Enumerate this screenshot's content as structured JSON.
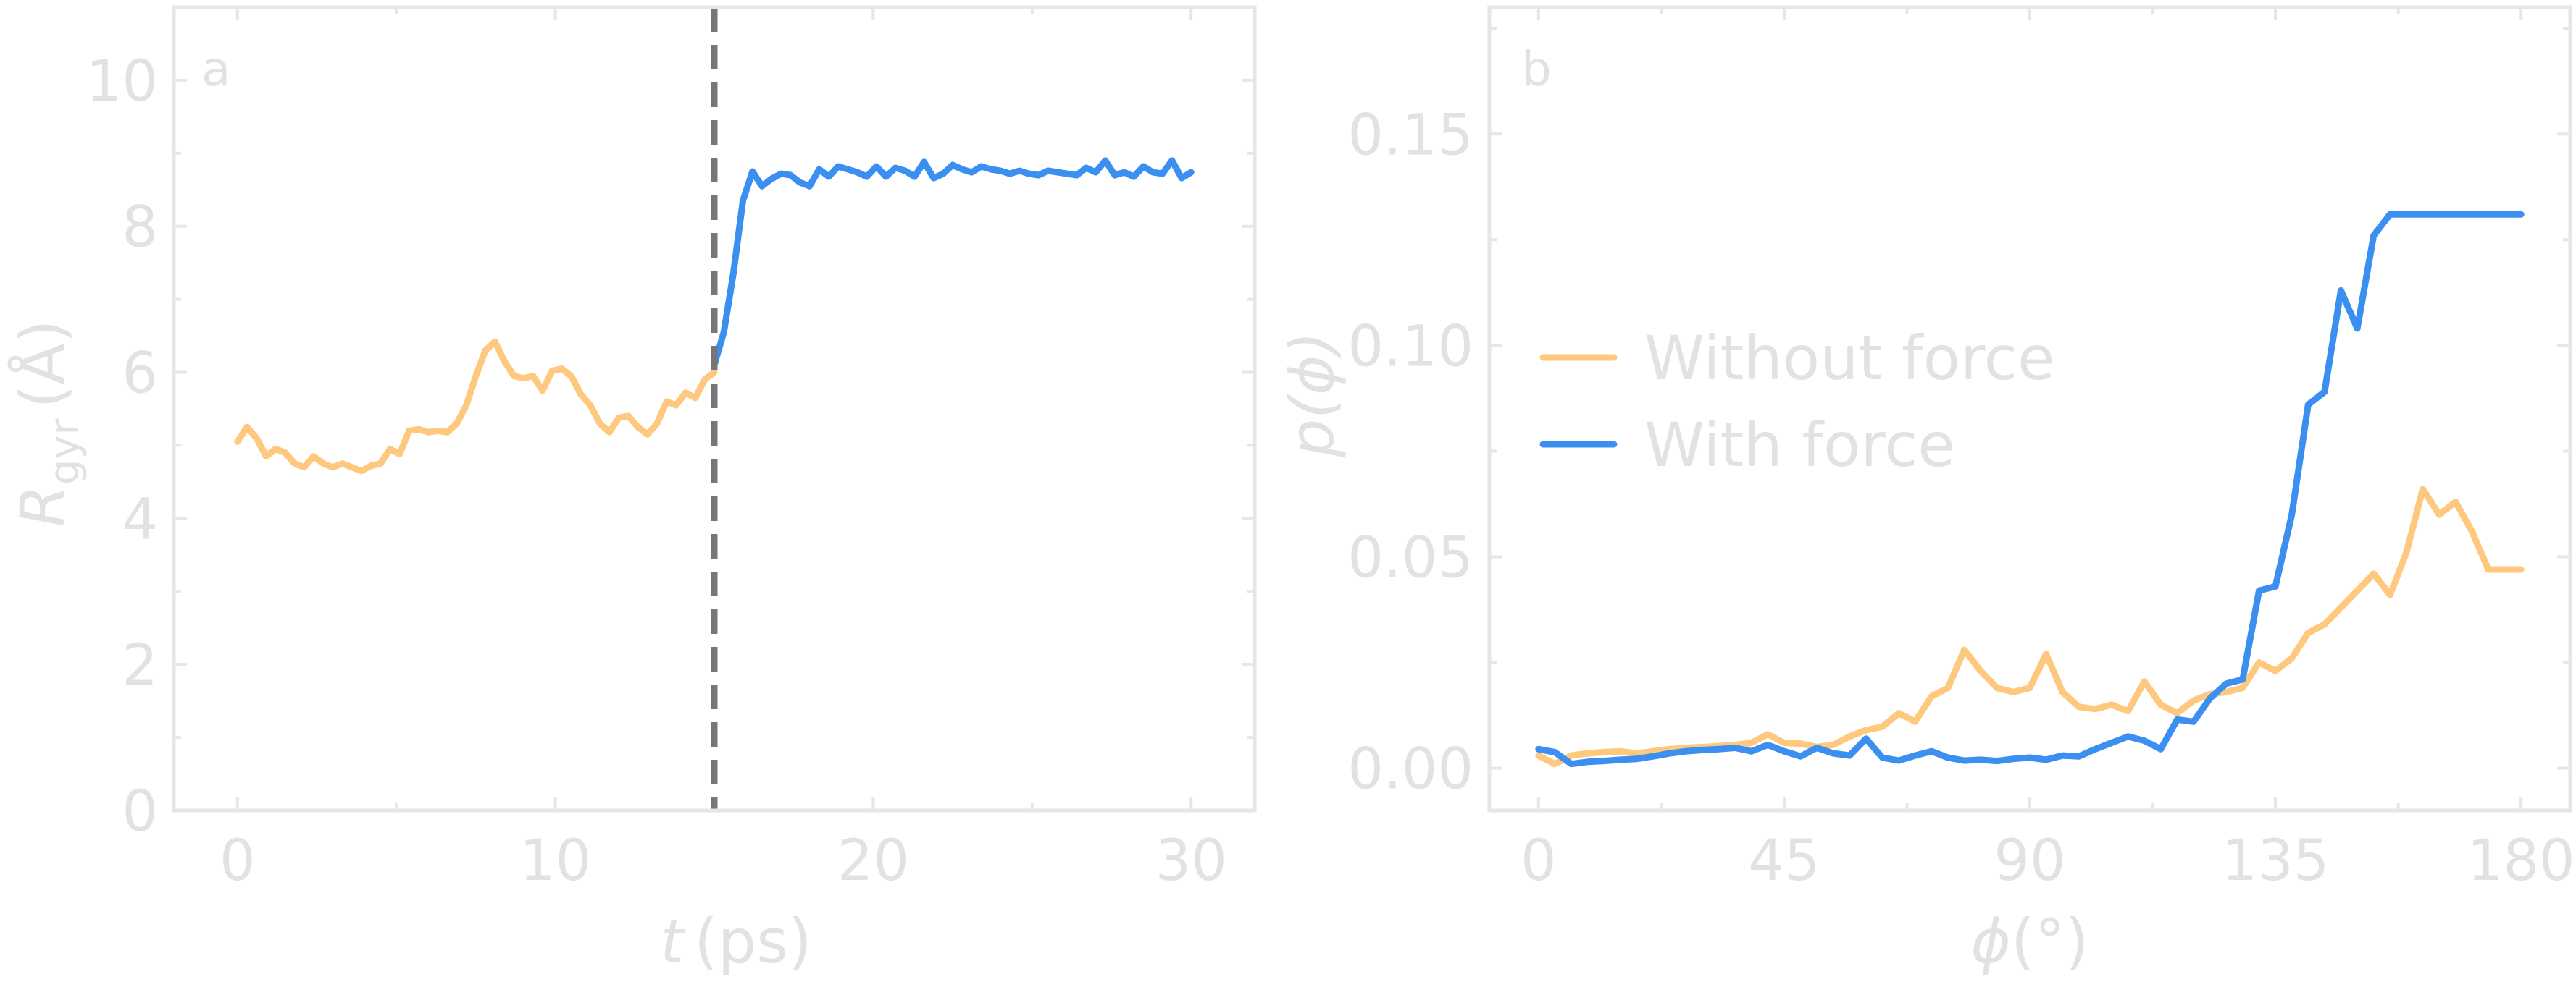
{
  "colors": {
    "without_force": "#fec97e",
    "with_force": "#3b8ff0",
    "marker_line": "#777777",
    "axes": "#e6e6e6",
    "text": "#e2e2e2"
  },
  "chart_data": [
    {
      "type": "line",
      "panel_label": "a",
      "xlabel_var": "t",
      "xlabel_unit": "(ps)",
      "ylabel_var": "R",
      "ylabel_sub": "gyr",
      "ylabel_unit": "(Å)",
      "xlim": [
        -2,
        32
      ],
      "ylim": [
        0,
        11
      ],
      "xticks": [
        0,
        10,
        20,
        30
      ],
      "yticks": [
        0,
        2,
        4,
        6,
        8,
        10
      ],
      "vline_x": 15,
      "series": [
        {
          "key": "without_force",
          "x": [
            0,
            0.3,
            0.6,
            0.9,
            1.2,
            1.5,
            1.8,
            2.1,
            2.4,
            2.7,
            3.0,
            3.3,
            3.6,
            3.9,
            4.2,
            4.5,
            4.8,
            5.1,
            5.4,
            5.7,
            6.0,
            6.3,
            6.6,
            6.9,
            7.2,
            7.5,
            7.8,
            8.1,
            8.4,
            8.7,
            9.0,
            9.3,
            9.6,
            9.9,
            10.2,
            10.5,
            10.8,
            11.1,
            11.4,
            11.7,
            12.0,
            12.3,
            12.6,
            12.9,
            13.2,
            13.5,
            13.8,
            14.1,
            14.4,
            14.7,
            15.0
          ],
          "y": [
            5.05,
            5.25,
            5.1,
            4.85,
            4.95,
            4.9,
            4.75,
            4.7,
            4.85,
            4.75,
            4.7,
            4.75,
            4.7,
            4.65,
            4.72,
            4.75,
            4.95,
            4.88,
            5.2,
            5.22,
            5.18,
            5.2,
            5.18,
            5.3,
            5.55,
            5.95,
            6.3,
            6.42,
            6.15,
            5.95,
            5.92,
            5.95,
            5.75,
            6.02,
            6.05,
            5.95,
            5.7,
            5.55,
            5.3,
            5.18,
            5.38,
            5.4,
            5.25,
            5.15,
            5.3,
            5.6,
            5.55,
            5.72,
            5.65,
            5.9,
            6.0
          ]
        },
        {
          "key": "with_force",
          "x": [
            15.0,
            15.3,
            15.6,
            15.9,
            16.2,
            16.5,
            16.8,
            17.1,
            17.4,
            17.7,
            18.0,
            18.3,
            18.6,
            18.9,
            19.2,
            19.5,
            19.8,
            20.1,
            20.4,
            20.7,
            21.0,
            21.3,
            21.6,
            21.9,
            22.2,
            22.5,
            22.8,
            23.1,
            23.4,
            23.7,
            24.0,
            24.3,
            24.6,
            24.9,
            25.2,
            25.5,
            25.8,
            26.1,
            26.4,
            26.7,
            27.0,
            27.3,
            27.6,
            27.9,
            28.2,
            28.5,
            28.8,
            29.1,
            29.4,
            29.7,
            30.0
          ],
          "y": [
            6.1,
            6.55,
            7.35,
            8.35,
            8.75,
            8.55,
            8.65,
            8.72,
            8.7,
            8.6,
            8.55,
            8.78,
            8.68,
            8.82,
            8.78,
            8.74,
            8.68,
            8.82,
            8.68,
            8.8,
            8.76,
            8.68,
            8.88,
            8.66,
            8.72,
            8.84,
            8.78,
            8.74,
            8.82,
            8.78,
            8.76,
            8.72,
            8.76,
            8.72,
            8.7,
            8.76,
            8.74,
            8.72,
            8.7,
            8.8,
            8.74,
            8.9,
            8.7,
            8.74,
            8.68,
            8.82,
            8.74,
            8.72,
            8.9,
            8.66,
            8.74
          ]
        }
      ]
    },
    {
      "type": "line",
      "panel_label": "b",
      "xlabel_var": "ϕ",
      "xlabel_unit": "(°)",
      "ylabel_text": "p(ϕ)",
      "xlim": [
        -9,
        189
      ],
      "ylim": [
        -0.01,
        0.18
      ],
      "xticks": [
        0,
        45,
        90,
        135,
        180
      ],
      "yticks": [
        0.0,
        0.05,
        0.1,
        0.15
      ],
      "ytick_labels": [
        "0.00",
        "0.05",
        "0.10",
        "0.15"
      ],
      "legend_position": "center-left",
      "series": [
        {
          "key": "without_force",
          "name": "Without force",
          "x": [
            0,
            3,
            6,
            9,
            12,
            15,
            18,
            21,
            24,
            27,
            30,
            33,
            36,
            39,
            42,
            45,
            48,
            51,
            54,
            57,
            60,
            63,
            66,
            69,
            72,
            75,
            78,
            81,
            84,
            87,
            90,
            93,
            96,
            99,
            102,
            105,
            108,
            111,
            114,
            117,
            120,
            123,
            126,
            129,
            132,
            135,
            138,
            141,
            144,
            147,
            150,
            153,
            156,
            159,
            162,
            165,
            168,
            171,
            174,
            177,
            180
          ],
          "y": [
            0.003,
            0.001,
            0.003,
            0.0035,
            0.0038,
            0.004,
            0.0035,
            0.004,
            0.0045,
            0.0048,
            0.005,
            0.0052,
            0.0055,
            0.006,
            0.008,
            0.006,
            0.0058,
            0.005,
            0.0055,
            0.0075,
            0.009,
            0.0098,
            0.013,
            0.011,
            0.017,
            0.019,
            0.028,
            0.023,
            0.019,
            0.018,
            0.019,
            0.027,
            0.018,
            0.0145,
            0.014,
            0.015,
            0.0135,
            0.0205,
            0.015,
            0.013,
            0.016,
            0.0175,
            0.018,
            0.019,
            0.025,
            0.023,
            0.026,
            0.032,
            0.034,
            0.038,
            0.042,
            0.046,
            0.041,
            0.051,
            0.066,
            0.06,
            0.063,
            0.056,
            0.047,
            0.047,
            0.047
          ]
        },
        {
          "key": "with_force",
          "name": "With force",
          "x": [
            0,
            3,
            6,
            9,
            12,
            15,
            18,
            21,
            24,
            27,
            30,
            33,
            36,
            39,
            42,
            45,
            48,
            51,
            54,
            57,
            60,
            63,
            66,
            69,
            72,
            75,
            78,
            81,
            84,
            87,
            90,
            93,
            96,
            99,
            102,
            105,
            108,
            111,
            114,
            117,
            120,
            123,
            126,
            129,
            132,
            135,
            138,
            141,
            144,
            147,
            150,
            153,
            156,
            159,
            162,
            165,
            168,
            171,
            174,
            177,
            180
          ],
          "y": [
            0.0045,
            0.0038,
            0.001,
            0.0015,
            0.0017,
            0.002,
            0.0022,
            0.0028,
            0.0035,
            0.004,
            0.0043,
            0.0045,
            0.0048,
            0.004,
            0.0055,
            0.004,
            0.0028,
            0.0048,
            0.0035,
            0.003,
            0.007,
            0.0025,
            0.0018,
            0.003,
            0.004,
            0.0025,
            0.0018,
            0.002,
            0.0017,
            0.0022,
            0.0025,
            0.002,
            0.003,
            0.0028,
            0.0045,
            0.006,
            0.0075,
            0.0065,
            0.0045,
            0.0115,
            0.011,
            0.0165,
            0.02,
            0.021,
            0.042,
            0.043,
            0.06,
            0.086,
            0.089,
            0.113,
            0.104,
            0.126,
            0.131,
            0.131,
            0.131,
            0.131,
            0.131,
            0.131,
            0.131,
            0.131,
            0.131
          ]
        }
      ]
    }
  ]
}
